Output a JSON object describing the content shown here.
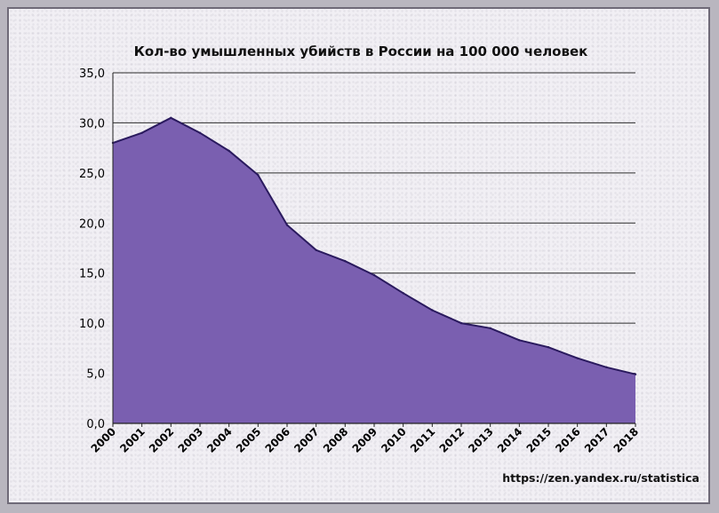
{
  "chart_data": {
    "type": "area",
    "title": "Кол-во умышленных убийств в России на 100 000 человек",
    "xlabel": "",
    "ylabel": "",
    "ylim": [
      0,
      35
    ],
    "y_ticks": [
      "0,0",
      "5,0",
      "10,0",
      "15,0",
      "20,0",
      "25,0",
      "30,0",
      "35,0"
    ],
    "categories": [
      "2000",
      "2001",
      "2002",
      "2003",
      "2004",
      "2005",
      "2006",
      "2007",
      "2008",
      "2009",
      "2010",
      "2011",
      "2012",
      "2013",
      "2014",
      "2015",
      "2016",
      "2017",
      "2018"
    ],
    "series": [
      {
        "values": [
          28.0,
          29.0,
          30.5,
          29.0,
          27.2,
          24.8,
          19.8,
          17.3,
          16.2,
          14.8,
          13.0,
          11.3,
          10.0,
          9.5,
          8.3,
          7.6,
          6.5,
          5.6,
          4.9
        ]
      }
    ],
    "grid": true,
    "legend": "none",
    "fill_color": "#7a5fb0",
    "line_color": "#2a1a5e",
    "watermark": "https://zen.yandex.ru/statistica"
  }
}
